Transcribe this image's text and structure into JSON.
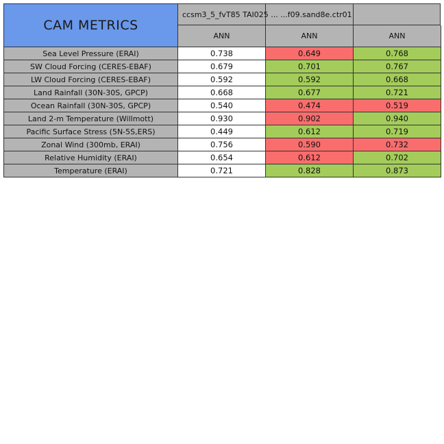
{
  "chart_data": {
    "type": "table",
    "title": "CAM METRICS",
    "case_header_overlap_text": "ccsm3_5_fvT85   TAI025 ...   ...f09.sand8e.ctr01",
    "columns": [
      {
        "season": "ANN"
      },
      {
        "season": "ANN"
      },
      {
        "season": "ANN"
      }
    ],
    "rows": [
      {
        "label": "Sea Level Pressure (ERAI)",
        "values": [
          "0.738",
          "0.649",
          "0.768"
        ],
        "status": [
          "none",
          "worse",
          "better"
        ]
      },
      {
        "label": "SW Cloud Forcing (CERES-EBAF)",
        "values": [
          "0.679",
          "0.701",
          "0.767"
        ],
        "status": [
          "none",
          "better",
          "better"
        ]
      },
      {
        "label": "LW Cloud Forcing (CERES-EBAF)",
        "values": [
          "0.592",
          "0.592",
          "0.668"
        ],
        "status": [
          "none",
          "better",
          "better"
        ]
      },
      {
        "label": "Land Rainfall (30N-30S, GPCP)",
        "values": [
          "0.668",
          "0.677",
          "0.721"
        ],
        "status": [
          "none",
          "better",
          "better"
        ]
      },
      {
        "label": "Ocean Rainfall (30N-30S, GPCP)",
        "values": [
          "0.540",
          "0.474",
          "0.519"
        ],
        "status": [
          "none",
          "worse",
          "worse"
        ]
      },
      {
        "label": "Land 2-m Temperature (Willmott)",
        "values": [
          "0.930",
          "0.902",
          "0.940"
        ],
        "status": [
          "none",
          "worse",
          "better"
        ]
      },
      {
        "label": "Pacific Surface Stress (5N-5S,ERS)",
        "values": [
          "0.449",
          "0.612",
          "0.719"
        ],
        "status": [
          "none",
          "better",
          "better"
        ]
      },
      {
        "label": "Zonal Wind (300mb, ERAI)",
        "values": [
          "0.756",
          "0.590",
          "0.732"
        ],
        "status": [
          "none",
          "worse",
          "worse"
        ]
      },
      {
        "label": "Relative Humidity (ERAI)",
        "values": [
          "0.654",
          "0.612",
          "0.702"
        ],
        "status": [
          "none",
          "worse",
          "better"
        ]
      },
      {
        "label": "Temperature (ERAI)",
        "values": [
          "0.721",
          "0.828",
          "0.873"
        ],
        "status": [
          "none",
          "better",
          "better"
        ]
      }
    ]
  },
  "colors": {
    "title_bg": "#6a98ea",
    "header_bg": "#b4b4b4",
    "better": "#a3cc5a",
    "worse": "#f96d6d",
    "none": "#ffffff"
  }
}
